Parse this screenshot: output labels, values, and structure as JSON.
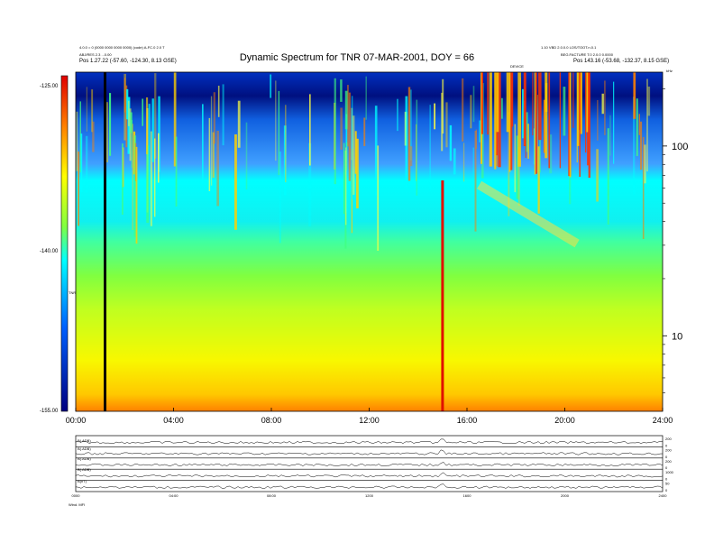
{
  "header": {
    "title": "Dynamic Spectrum for TNR 07-MAR-2001, DOY = 66",
    "left_block": [
      "4.0.0 = 0 (0000 0000 0000 0000) (code)   A-FC.0 2.0 T",
      "ABJ/RES 2.3 ...0.00",
      "Pos   1.27.22 (-57.60, -124.30, 8.13 GSE)"
    ],
    "right_block": [
      "1.10 VBD 2.0.0.0                        LOS/TOOT.n.0.1",
      "BEG.FACTURE T.0 2.0.0 0.0000",
      "Pos   143.16 (-53.68, -132.37, 8.15 GSE)"
    ],
    "marker_label": "DEVICE",
    "top_right_tag": "kHz"
  },
  "colorbar": {
    "labels": [
      "-125.00",
      "-140.00",
      "-155.00"
    ],
    "title": "TNR"
  },
  "chart_data": [
    {
      "type": "heatmap",
      "title": "Dynamic Spectrum for TNR 07-MAR-2001, DOY = 66",
      "xlabel": "",
      "ylabel": "kHz",
      "x_ticks": [
        "00:00",
        "04:00",
        "08:00",
        "12:00",
        "16:00",
        "20:00",
        "24:00"
      ],
      "xlim_hours": [
        0,
        24
      ],
      "y_scale": "log",
      "ylim_khz": [
        4,
        245
      ],
      "y_ticks": [
        10,
        100
      ],
      "colorbar_range": [
        -155.0,
        -125.0
      ],
      "features": [
        {
          "name": "data gap line",
          "time_hours": 1.2
        },
        {
          "name": "broadband burst",
          "time_hours": 15.0
        },
        {
          "name": "drifting emission",
          "start_hours": 16.5,
          "end_hours": 20.5
        }
      ]
    },
    {
      "type": "line",
      "panels": [
        {
          "label": "B(.ADB)",
          "right_ticks": [
            "200",
            "0"
          ]
        },
        {
          "label": "B(.ADB)",
          "right_ticks": [
            "200",
            "0"
          ]
        },
        {
          "label": "B(.ADB)",
          "right_ticks": [
            "200",
            "0"
          ]
        },
        {
          "label": "B(.ADB)",
          "right_ticks": [
            "1000",
            "0"
          ]
        },
        {
          "label": "B(nT)",
          "right_ticks": [
            "50",
            "0"
          ]
        }
      ],
      "x_ticks": [
        "0000",
        "04:00",
        "08:00",
        "1200",
        "1600",
        "2000",
        "2400"
      ],
      "footer_label": "Wind.  MFI"
    }
  ]
}
